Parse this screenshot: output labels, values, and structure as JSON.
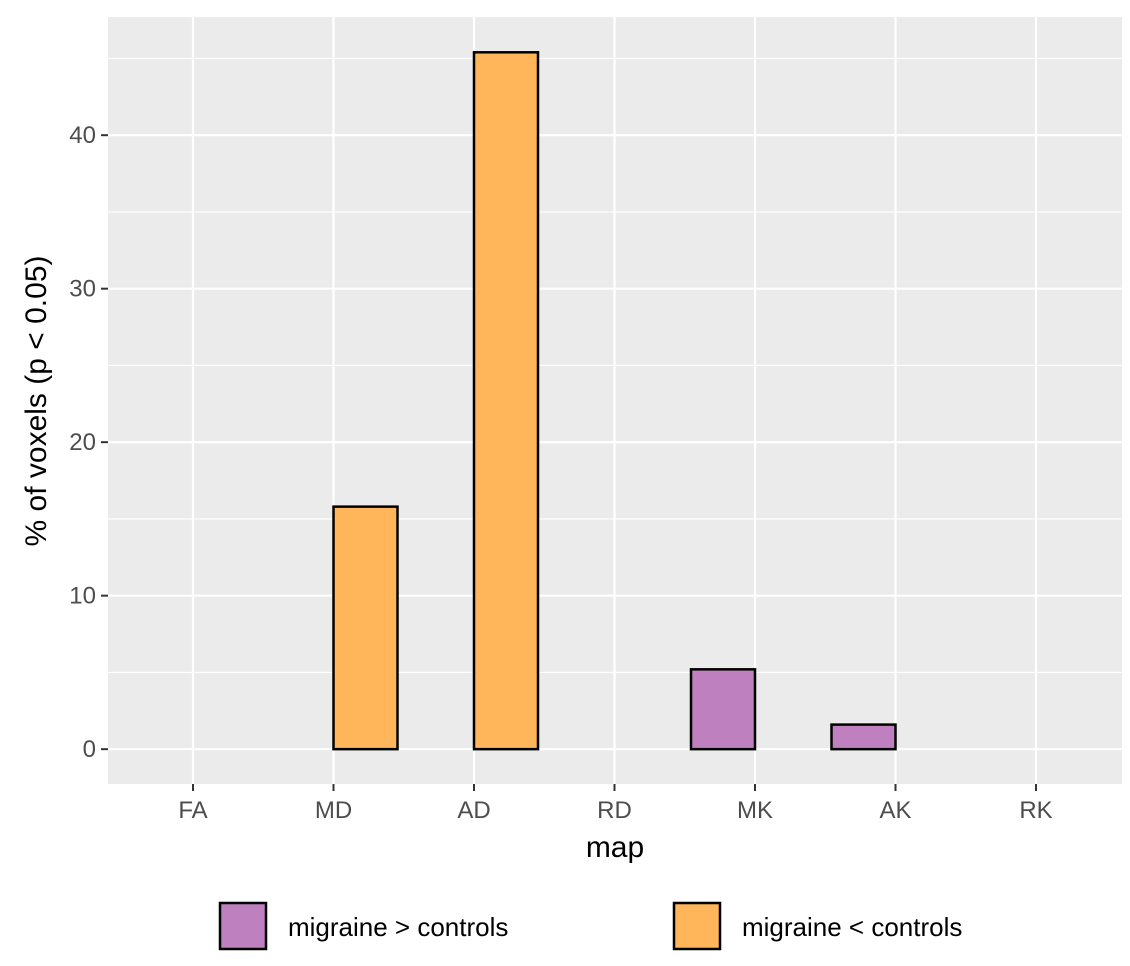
{
  "chart_data": {
    "type": "bar",
    "xlabel": "map",
    "ylabel": "% of voxels (p < 0.05)",
    "categories": [
      "FA",
      "MD",
      "AD",
      "RD",
      "MK",
      "AK",
      "RK"
    ],
    "series": [
      {
        "name": "migraine > controls",
        "color": "#BF80BF",
        "values": [
          0,
          0,
          0,
          0,
          5.2,
          1.6,
          0
        ]
      },
      {
        "name": "migraine < controls",
        "color": "#FFB55A",
        "values": [
          0,
          15.8,
          45.4,
          0,
          0,
          0,
          0
        ]
      }
    ],
    "ylim": [
      -2.27,
      47.7
    ],
    "yticks": [
      0,
      10,
      20,
      30,
      40
    ],
    "grid": true,
    "legend_position": "bottom",
    "panel_color": "#EBEBEB"
  }
}
